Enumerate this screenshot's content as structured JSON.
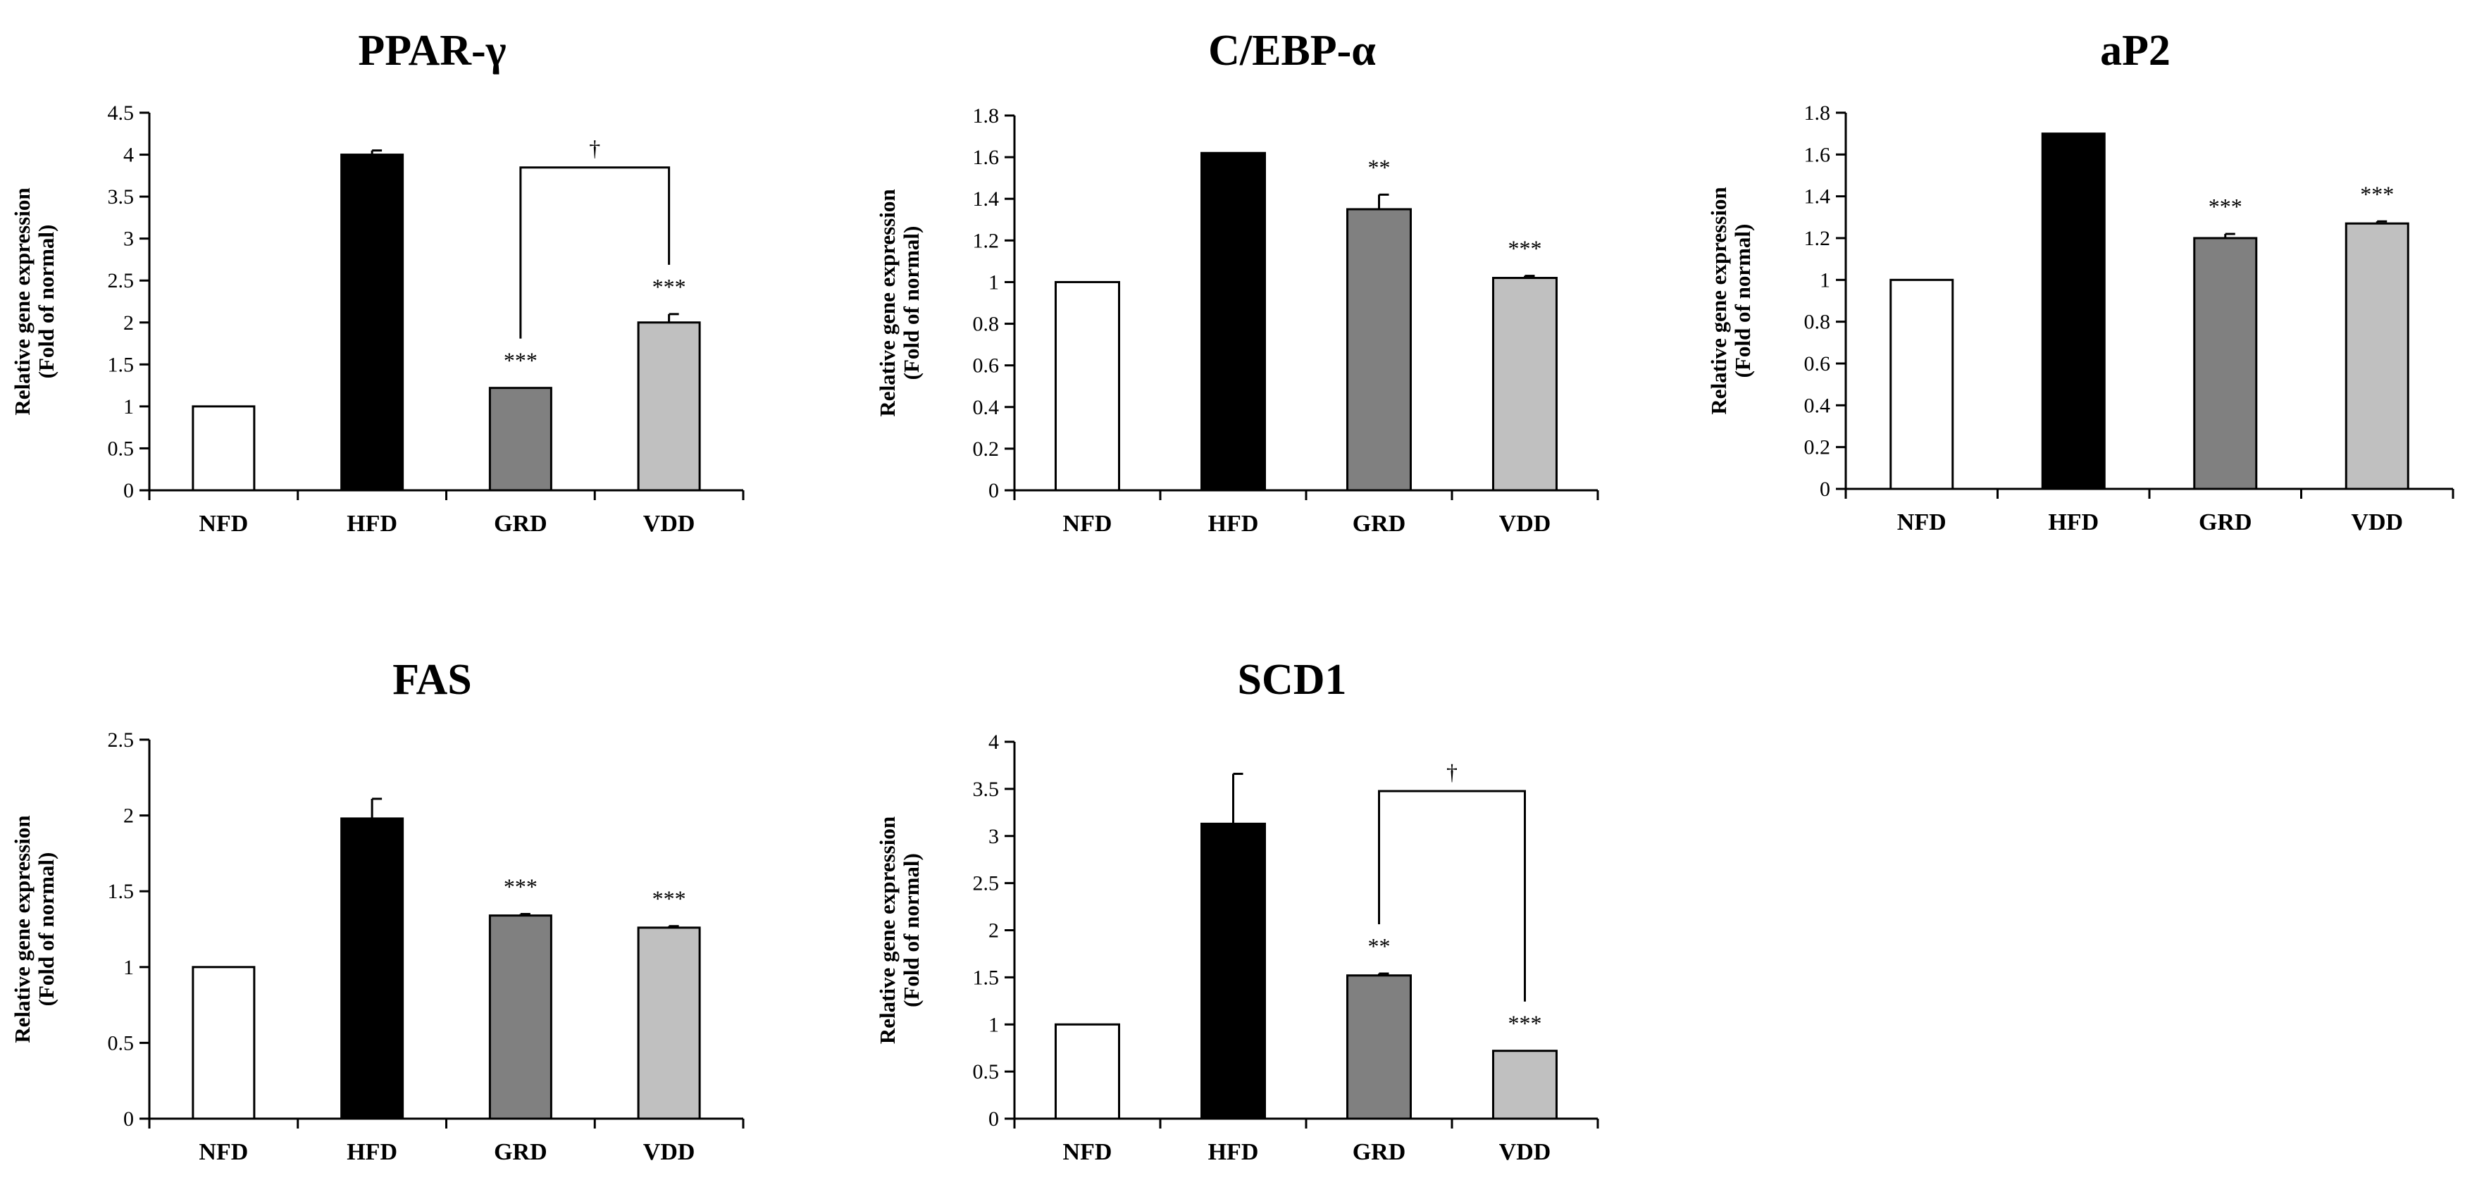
{
  "chart_data": [
    {
      "type": "bar",
      "title": "PPAR-γ",
      "ylabel": [
        "Relative gene expression",
        "(Fold of normal)"
      ],
      "xlabel": "",
      "categories": [
        "NFD",
        "HFD",
        "GRD",
        "VDD"
      ],
      "values": [
        1.0,
        4.0,
        1.22,
        2.0
      ],
      "errors": [
        0,
        0.05,
        0,
        0.1
      ],
      "significance": [
        "",
        "",
        "***",
        "***"
      ],
      "bracket": {
        "from": "GRD",
        "to": "VDD",
        "label": "†"
      },
      "yticks": [
        "0",
        "0.5",
        "1",
        "1.5",
        "2",
        "2.5",
        "3",
        "3.5",
        "4",
        "4.5"
      ],
      "ylim": [
        0,
        4.5
      ]
    },
    {
      "type": "bar",
      "title": "C/EBP-α",
      "ylabel": [
        "Relative gene expression",
        "(Fold of normal)"
      ],
      "xlabel": "",
      "categories": [
        "NFD",
        "HFD",
        "GRD",
        "VDD"
      ],
      "values": [
        1.0,
        1.62,
        1.35,
        1.02
      ],
      "errors": [
        0,
        0,
        0.07,
        0.01
      ],
      "significance": [
        "",
        "",
        "**",
        "***"
      ],
      "yticks": [
        "0",
        "0.2",
        "0.4",
        "0.6",
        "0.8",
        "1",
        "1.2",
        "1.4",
        "1.6",
        "1.8"
      ],
      "ylim": [
        0,
        1.8
      ]
    },
    {
      "type": "bar",
      "title": "aP2",
      "ylabel": [
        "Relative gene expression",
        "(Fold of normal)"
      ],
      "xlabel": "",
      "categories": [
        "NFD",
        "HFD",
        "GRD",
        "VDD"
      ],
      "values": [
        1.0,
        1.7,
        1.2,
        1.27
      ],
      "errors": [
        0,
        0,
        0.02,
        0.01
      ],
      "significance": [
        "",
        "",
        "***",
        "***"
      ],
      "yticks": [
        "0",
        "0.2",
        "0.4",
        "0.6",
        "0.8",
        "1",
        "1.2",
        "1.4",
        "1.6",
        "1.8"
      ],
      "ylim": [
        0,
        1.8
      ]
    },
    {
      "type": "bar",
      "title": "FAS",
      "ylabel": [
        "Relative gene expression",
        "(Fold of normal)"
      ],
      "xlabel": "",
      "categories": [
        "NFD",
        "HFD",
        "GRD",
        "VDD"
      ],
      "values": [
        1.0,
        1.98,
        1.34,
        1.26
      ],
      "errors": [
        0,
        0.13,
        0.01,
        0.01
      ],
      "significance": [
        "",
        "",
        "***",
        "***"
      ],
      "yticks": [
        "0",
        "0.5",
        "1",
        "1.5",
        "2",
        "2.5"
      ],
      "ylim": [
        0,
        2.5
      ]
    },
    {
      "type": "bar",
      "title": "SCD1",
      "ylabel": [
        "Relative gene expression",
        "(Fold of normal)"
      ],
      "xlabel": "",
      "categories": [
        "NFD",
        "HFD",
        "GRD",
        "VDD"
      ],
      "values": [
        1.0,
        3.13,
        1.52,
        0.72
      ],
      "errors": [
        0,
        0.53,
        0.02,
        0
      ],
      "significance": [
        "",
        "",
        "**",
        "***"
      ],
      "bracket": {
        "from": "GRD",
        "to": "VDD",
        "label": "†"
      },
      "yticks": [
        "0",
        "0.5",
        "1",
        "1.5",
        "2",
        "2.5",
        "3",
        "3.5",
        "4"
      ],
      "ylim": [
        0,
        4
      ]
    }
  ],
  "colors": {
    "NFD": "#ffffff",
    "HFD": "#000000",
    "GRD": "#808080",
    "VDD": "#c0c0c0",
    "axis": "#000000"
  }
}
